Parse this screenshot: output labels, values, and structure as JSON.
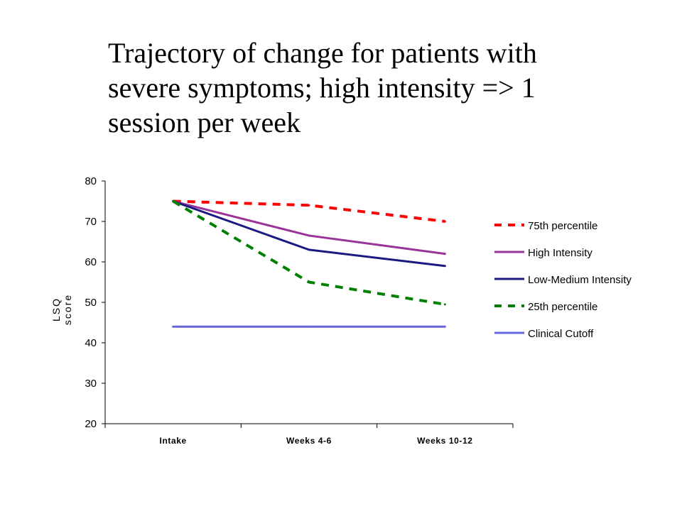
{
  "title_lines": [
    "Trajectory of change for patients with",
    "severe symptoms; high intensity => 1",
    "session per week"
  ],
  "chart_data": {
    "type": "line",
    "categories": [
      "Intake",
      "Weeks 4-6",
      "Weeks 10-12"
    ],
    "ylim": [
      20,
      80
    ],
    "yticks": [
      20,
      30,
      40,
      50,
      60,
      70,
      80
    ],
    "ylabel_lines": [
      "LSQ",
      "score"
    ],
    "xlabel": "",
    "grid": false,
    "legend_position": "right",
    "series": [
      {
        "name": "75th percentile",
        "color": "#ff0000",
        "style": "dashed",
        "values": [
          75,
          74,
          70
        ]
      },
      {
        "name": "High Intensity",
        "color": "#993399",
        "style": "solid",
        "values": [
          75,
          66.5,
          62
        ]
      },
      {
        "name": "Low-Medium Intensity",
        "color": "#1a1a80",
        "style": "solid",
        "values": [
          75,
          63,
          59
        ]
      },
      {
        "name": "25th percentile",
        "color": "#008000",
        "style": "dashed",
        "values": [
          75,
          55,
          49.5
        ]
      },
      {
        "name": "Clinical Cutoff",
        "color": "#6666dd",
        "style": "solid",
        "values": [
          44,
          44,
          44
        ]
      }
    ]
  }
}
